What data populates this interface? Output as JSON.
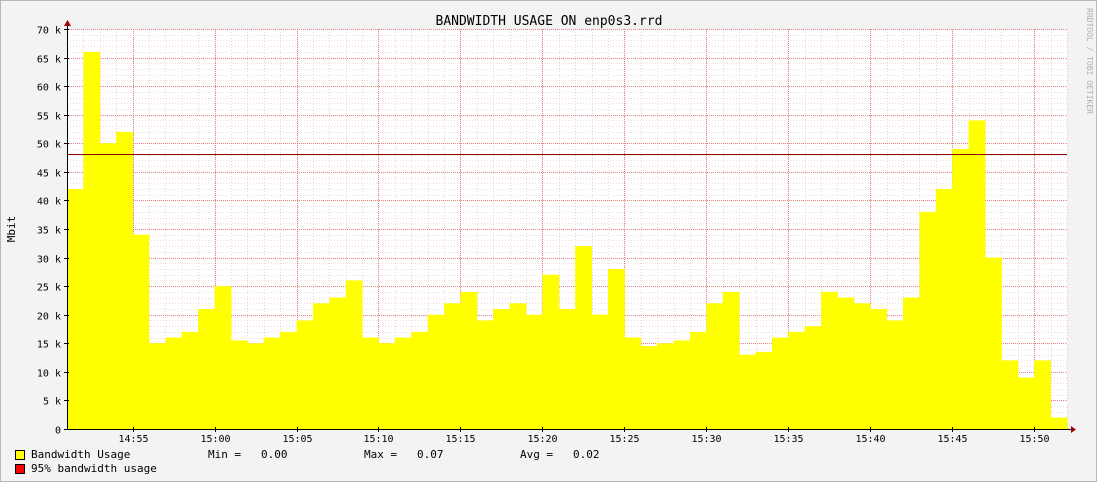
{
  "chart_data": {
    "type": "area",
    "title": "BANDWIDTH USAGE ON enp0s3.rrd",
    "ylabel": "Mbit",
    "watermark": "RRDTOOL / TOBI OETIKER",
    "ylim": [
      0,
      70000
    ],
    "y_ticks": [
      {
        "value": 0,
        "label": "0"
      },
      {
        "value": 5000,
        "label": "5 k"
      },
      {
        "value": 10000,
        "label": "10 k"
      },
      {
        "value": 15000,
        "label": "15 k"
      },
      {
        "value": 20000,
        "label": "20 k"
      },
      {
        "value": 25000,
        "label": "25 k"
      },
      {
        "value": 30000,
        "label": "30 k"
      },
      {
        "value": 35000,
        "label": "35 k"
      },
      {
        "value": 40000,
        "label": "40 k"
      },
      {
        "value": 45000,
        "label": "45 k"
      },
      {
        "value": 50000,
        "label": "50 k"
      },
      {
        "value": 55000,
        "label": "55 k"
      },
      {
        "value": 60000,
        "label": "60 k"
      },
      {
        "value": 65000,
        "label": "65 k"
      },
      {
        "value": 70000,
        "label": "70 k"
      }
    ],
    "x_range": [
      "14:51",
      "15:52"
    ],
    "x_ticks": [
      "14:55",
      "15:00",
      "15:05",
      "15:10",
      "15:15",
      "15:20",
      "15:25",
      "15:30",
      "15:35",
      "15:40",
      "15:45",
      "15:50"
    ],
    "grid": true,
    "colors": {
      "area": "#ffff00",
      "line95": "#8b0000",
      "grid": "#e06666",
      "canvas": "#ffffff",
      "background": "#f3f3f3"
    },
    "percentile95": 48200,
    "series": [
      {
        "name": "Bandwidth Usage",
        "color": "#ffff00",
        "x": [
          "14:51",
          "14:52",
          "14:53",
          "14:54",
          "14:55",
          "14:56",
          "14:57",
          "14:58",
          "14:59",
          "15:00",
          "15:01",
          "15:02",
          "15:03",
          "15:04",
          "15:05",
          "15:06",
          "15:07",
          "15:08",
          "15:09",
          "15:10",
          "15:11",
          "15:12",
          "15:13",
          "15:14",
          "15:15",
          "15:16",
          "15:17",
          "15:18",
          "15:19",
          "15:20",
          "15:21",
          "15:22",
          "15:23",
          "15:24",
          "15:25",
          "15:26",
          "15:27",
          "15:28",
          "15:29",
          "15:30",
          "15:31",
          "15:32",
          "15:33",
          "15:34",
          "15:35",
          "15:36",
          "15:37",
          "15:38",
          "15:39",
          "15:40",
          "15:41",
          "15:42",
          "15:43",
          "15:44",
          "15:45",
          "15:46",
          "15:47",
          "15:48",
          "15:49",
          "15:50",
          "15:51"
        ],
        "values": [
          42000,
          66000,
          50000,
          52000,
          34000,
          15000,
          16000,
          17000,
          21000,
          25000,
          15500,
          15000,
          16000,
          17000,
          19000,
          22000,
          23000,
          26000,
          16000,
          15000,
          16000,
          17000,
          20000,
          22000,
          24000,
          19000,
          21000,
          22000,
          20000,
          27000,
          21000,
          32000,
          20000,
          28000,
          16000,
          14500,
          15000,
          15500,
          17000,
          22000,
          24000,
          13000,
          13500,
          16000,
          17000,
          18000,
          24000,
          23000,
          22000,
          21000,
          19000,
          23000,
          38000,
          42000,
          49000,
          54000,
          30000,
          12000,
          9000,
          12000,
          2000
        ]
      }
    ],
    "legend": [
      {
        "label": "Bandwidth Usage",
        "color": "#ffff00"
      },
      {
        "label": "95% bandwidth usage",
        "color": "#ff0000"
      }
    ],
    "stats": {
      "min": "Min =   0.00",
      "max": "Max =   0.07",
      "avg": "Avg =   0.02"
    }
  }
}
